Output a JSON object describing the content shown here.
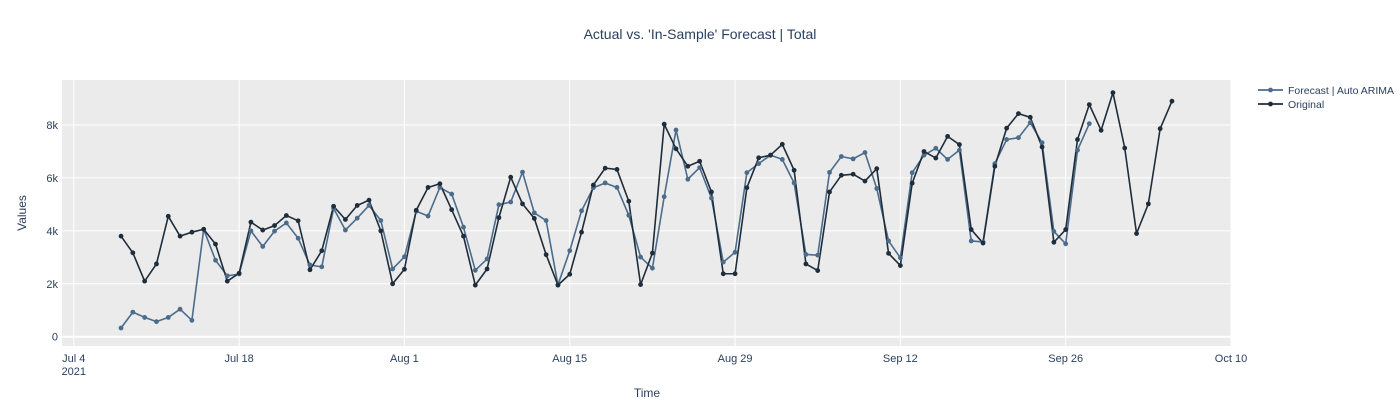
{
  "chart_data": {
    "type": "line",
    "title": "Actual vs. 'In-Sample' Forecast | Total",
    "xlabel": "Time",
    "ylabel": "Values",
    "x_start": "2021-07-08",
    "x_tick_labels": [
      {
        "date": "2021-07-04",
        "label": "Jul 4",
        "sublabel": "2021"
      },
      {
        "date": "2021-07-18",
        "label": "Jul 18",
        "sublabel": ""
      },
      {
        "date": "2021-08-01",
        "label": "Aug 1",
        "sublabel": ""
      },
      {
        "date": "2021-08-15",
        "label": "Aug 15",
        "sublabel": ""
      },
      {
        "date": "2021-08-29",
        "label": "Aug 29",
        "sublabel": ""
      },
      {
        "date": "2021-09-12",
        "label": "Sep 12",
        "sublabel": ""
      },
      {
        "date": "2021-09-26",
        "label": "Sep 26",
        "sublabel": ""
      },
      {
        "date": "2021-10-10",
        "label": "Oct 10",
        "sublabel": ""
      }
    ],
    "y_ticks": [
      0,
      2000,
      4000,
      6000,
      8000
    ],
    "y_tick_labels": [
      "0",
      "2k",
      "4k",
      "6k",
      "8k"
    ],
    "xlim": [
      "2021-07-03",
      "2021-10-10"
    ],
    "ylim": [
      -350,
      9700
    ],
    "grid": true,
    "legend": "top-right",
    "plot_bg": "#ebebeb",
    "series": [
      {
        "name": "Forecast | Auto ARIMA",
        "color": "#4c6c8c",
        "values": [
          330,
          930,
          730,
          570,
          730,
          1040,
          620,
          4060,
          2890,
          2300,
          2370,
          4000,
          3410,
          3990,
          4300,
          3720,
          2710,
          2640,
          4850,
          4030,
          4480,
          4960,
          4390,
          2560,
          3020,
          4740,
          4560,
          5640,
          5390,
          4140,
          2510,
          2940,
          4990,
          5090,
          6220,
          4680,
          4390,
          1960,
          3250,
          4760,
          5630,
          5810,
          5640,
          4590,
          3010,
          2590,
          5290,
          7810,
          5950,
          6390,
          5240,
          2820,
          3190,
          6200,
          6540,
          6860,
          6700,
          5810,
          3110,
          3080,
          6210,
          6810,
          6720,
          6960,
          5600,
          3620,
          2980,
          6200,
          6860,
          7120,
          6700,
          7050,
          3620,
          3580,
          6540,
          7450,
          7520,
          8090,
          7330,
          3980,
          3510,
          7050,
          8050,
          null,
          null,
          null,
          null,
          null,
          null,
          null,
          null
        ]
      },
      {
        "name": "Original",
        "color": "#1f2d3a",
        "values": [
          3800,
          3170,
          2100,
          2750,
          4550,
          3800,
          3950,
          4060,
          3500,
          2100,
          2400,
          4330,
          4030,
          4200,
          4580,
          4380,
          2530,
          3250,
          4930,
          4430,
          4960,
          5160,
          4000,
          2000,
          2550,
          4780,
          5640,
          5780,
          4800,
          3800,
          1950,
          2560,
          4500,
          6030,
          5020,
          4470,
          3100,
          1950,
          2360,
          3950,
          5730,
          6370,
          6320,
          5120,
          1970,
          3160,
          8030,
          7100,
          6440,
          6630,
          5470,
          2380,
          2380,
          5630,
          6760,
          6860,
          7270,
          6290,
          2750,
          2500,
          5470,
          6100,
          6140,
          5880,
          6350,
          3150,
          2690,
          5800,
          7000,
          6750,
          7570,
          7260,
          4050,
          3540,
          6440,
          7880,
          8430,
          8290,
          7170,
          3570,
          4050,
          7450,
          8770,
          7800,
          9220,
          7130,
          3900,
          5020,
          7860,
          8900
        ]
      }
    ]
  }
}
